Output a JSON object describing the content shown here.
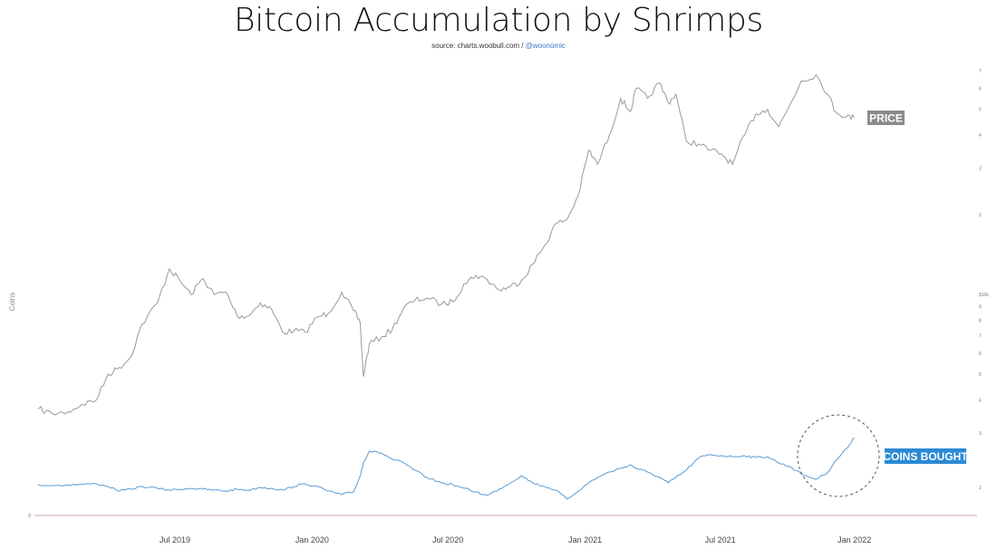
{
  "chart_data": {
    "type": "line",
    "title": "Bitcoin Accumulation by Shrimps",
    "source_prefix": "source: charts.woobull.com / ",
    "source_handle": "@woonomic",
    "ylabel": "Coins",
    "x_ticks": [
      "Jul 2019",
      "Jan 2020",
      "Jul 2020",
      "Jan 2021",
      "Jul 2021",
      "Jan 2022"
    ],
    "left_ticks": [
      "0"
    ],
    "right_ticks": [
      "7",
      "6",
      "5",
      "4",
      "3",
      "2",
      "$10k",
      "9",
      "8",
      "7",
      "6",
      "5",
      "4",
      "3",
      "2"
    ],
    "price_label": "PRICE",
    "coins_label": "COINS BOUGHT",
    "colors": {
      "price": "#9a9a9a",
      "coins": "#5b9bd5",
      "coins_tag": "#2a8ad4",
      "price_tag": "#8a8a8a"
    },
    "annotation": "dashed-circle-around-late-2021-coins-rise",
    "series": [
      {
        "name": "PRICE",
        "x": [
          "2019-01-01",
          "2019-01-20",
          "2019-02-10",
          "2019-03-01",
          "2019-03-20",
          "2019-04-05",
          "2019-04-20",
          "2019-05-05",
          "2019-05-20",
          "2019-06-10",
          "2019-06-26",
          "2019-07-10",
          "2019-07-25",
          "2019-08-10",
          "2019-08-25",
          "2019-09-10",
          "2019-09-25",
          "2019-10-10",
          "2019-10-26",
          "2019-11-10",
          "2019-11-25",
          "2019-12-10",
          "2019-12-25",
          "2020-01-10",
          "2020-01-25",
          "2020-02-12",
          "2020-02-28",
          "2020-03-08",
          "2020-03-12",
          "2020-03-20",
          "2020-04-05",
          "2020-04-20",
          "2020-05-05",
          "2020-05-20",
          "2020-06-05",
          "2020-06-25",
          "2020-07-10",
          "2020-07-25",
          "2020-08-10",
          "2020-08-25",
          "2020-09-10",
          "2020-09-25",
          "2020-10-10",
          "2020-10-25",
          "2020-11-10",
          "2020-11-25",
          "2020-12-10",
          "2020-12-25",
          "2021-01-08",
          "2021-01-20",
          "2021-02-05",
          "2021-02-20",
          "2021-03-05",
          "2021-03-13",
          "2021-03-28",
          "2021-04-13",
          "2021-04-25",
          "2021-05-05",
          "2021-05-19",
          "2021-06-05",
          "2021-06-20",
          "2021-07-05",
          "2021-07-20",
          "2021-08-05",
          "2021-08-20",
          "2021-09-05",
          "2021-09-20",
          "2021-10-05",
          "2021-10-20",
          "2021-11-09",
          "2021-11-25",
          "2021-12-05",
          "2021-12-20",
          "2021-12-30"
        ],
        "values": [
          3700,
          3550,
          3600,
          3850,
          4000,
          5000,
          5300,
          5800,
          7700,
          9300,
          12500,
          11300,
          10000,
          11500,
          10000,
          10200,
          8300,
          8300,
          9300,
          8800,
          7200,
          7300,
          7200,
          8200,
          8500,
          10200,
          8700,
          7800,
          4900,
          6500,
          6900,
          7400,
          8900,
          9500,
          9700,
          9200,
          9400,
          11000,
          11800,
          11400,
          10400,
          10700,
          11300,
          13000,
          15300,
          18500,
          19200,
          23500,
          35000,
          31000,
          40000,
          55000,
          49000,
          60000,
          55000,
          63000,
          53000,
          57000,
          38000,
          37000,
          35000,
          34000,
          31000,
          40000,
          48000,
          50000,
          43000,
          52000,
          64000,
          67500,
          57000,
          49000,
          47000,
          46500
        ]
      },
      {
        "name": "COINS BOUGHT",
        "x": [
          "2019-01-01",
          "2019-01-20",
          "2019-02-10",
          "2019-03-01",
          "2019-03-20",
          "2019-04-05",
          "2019-04-20",
          "2019-05-05",
          "2019-05-20",
          "2019-06-10",
          "2019-06-26",
          "2019-07-10",
          "2019-07-25",
          "2019-08-10",
          "2019-08-25",
          "2019-09-10",
          "2019-09-25",
          "2019-10-10",
          "2019-10-26",
          "2019-11-10",
          "2019-11-25",
          "2019-12-10",
          "2019-12-25",
          "2020-01-10",
          "2020-01-25",
          "2020-02-12",
          "2020-02-28",
          "2020-03-08",
          "2020-03-12",
          "2020-03-20",
          "2020-04-05",
          "2020-04-20",
          "2020-05-05",
          "2020-05-20",
          "2020-06-05",
          "2020-06-25",
          "2020-07-10",
          "2020-07-25",
          "2020-08-10",
          "2020-08-25",
          "2020-09-10",
          "2020-09-25",
          "2020-10-10",
          "2020-10-25",
          "2020-11-10",
          "2020-11-25",
          "2020-12-10",
          "2020-12-25",
          "2021-01-08",
          "2021-01-20",
          "2021-02-05",
          "2021-02-20",
          "2021-03-05",
          "2021-03-13",
          "2021-03-28",
          "2021-04-13",
          "2021-04-25",
          "2021-05-05",
          "2021-05-19",
          "2021-06-05",
          "2021-06-20",
          "2021-07-05",
          "2021-07-20",
          "2021-08-05",
          "2021-08-20",
          "2021-09-05",
          "2021-09-20",
          "2021-10-05",
          "2021-10-20",
          "2021-11-09",
          "2021-11-25",
          "2021-12-05",
          "2021-12-20",
          "2021-12-30"
        ],
        "values": [
          1.7,
          1.65,
          1.68,
          1.72,
          1.75,
          1.6,
          1.35,
          1.45,
          1.6,
          1.5,
          1.4,
          1.45,
          1.5,
          1.45,
          1.4,
          1.35,
          1.45,
          1.4,
          1.55,
          1.5,
          1.4,
          1.6,
          1.75,
          1.6,
          1.35,
          1.15,
          1.3,
          2.2,
          2.9,
          3.55,
          3.45,
          3.1,
          2.9,
          2.5,
          2.1,
          1.8,
          1.7,
          1.5,
          1.3,
          1.1,
          1.45,
          1.8,
          2.2,
          1.8,
          1.6,
          1.4,
          0.9,
          1.35,
          1.8,
          2.1,
          2.4,
          2.6,
          2.8,
          2.6,
          2.4,
          2.1,
          1.8,
          2.1,
          2.5,
          3.2,
          3.35,
          3.3,
          3.25,
          3.3,
          3.2,
          3.25,
          2.9,
          2.7,
          2.3,
          2.0,
          2.4,
          3.0,
          3.7,
          4.3
        ]
      }
    ]
  }
}
